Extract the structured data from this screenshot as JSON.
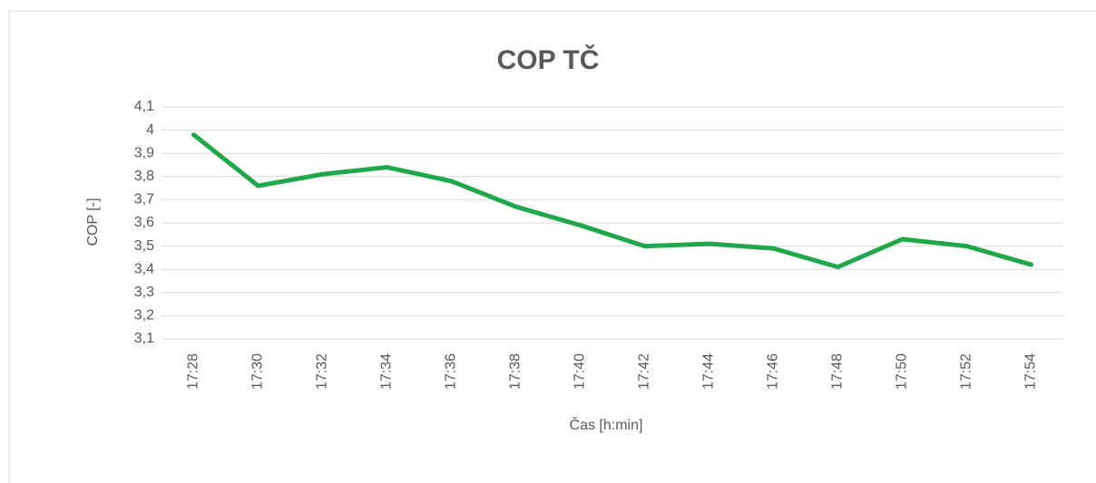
{
  "chart_data": {
    "type": "line",
    "title": "COP TČ",
    "x_label": "Čas [h:min]",
    "y_label": "COP [-]",
    "categories": [
      "17:28",
      "17:30",
      "17:32",
      "17:34",
      "17:36",
      "17:38",
      "17:40",
      "17:42",
      "17:44",
      "17:46",
      "17:48",
      "17:50",
      "17:52",
      "17:54"
    ],
    "series": [
      {
        "color": "#1fa84a",
        "values": [
          3.98,
          3.76,
          3.81,
          3.84,
          3.78,
          3.67,
          3.59,
          3.5,
          3.51,
          3.49,
          3.41,
          3.53,
          3.5,
          3.42
        ]
      }
    ],
    "ylim": [
      3.1,
      4.1
    ],
    "yticks": [
      {
        "value": 3.1,
        "label": "3,1"
      },
      {
        "value": 3.2,
        "label": "3,2"
      },
      {
        "value": 3.3,
        "label": "3,3"
      },
      {
        "value": 3.4,
        "label": "3,4"
      },
      {
        "value": 3.5,
        "label": "3,5"
      },
      {
        "value": 3.6,
        "label": "3,6"
      },
      {
        "value": 3.7,
        "label": "3,7"
      },
      {
        "value": 3.8,
        "label": "3,8"
      },
      {
        "value": 3.9,
        "label": "3,9"
      },
      4,
      {
        "value": 4.1,
        "label": "4,1"
      }
    ],
    "grid": true
  }
}
